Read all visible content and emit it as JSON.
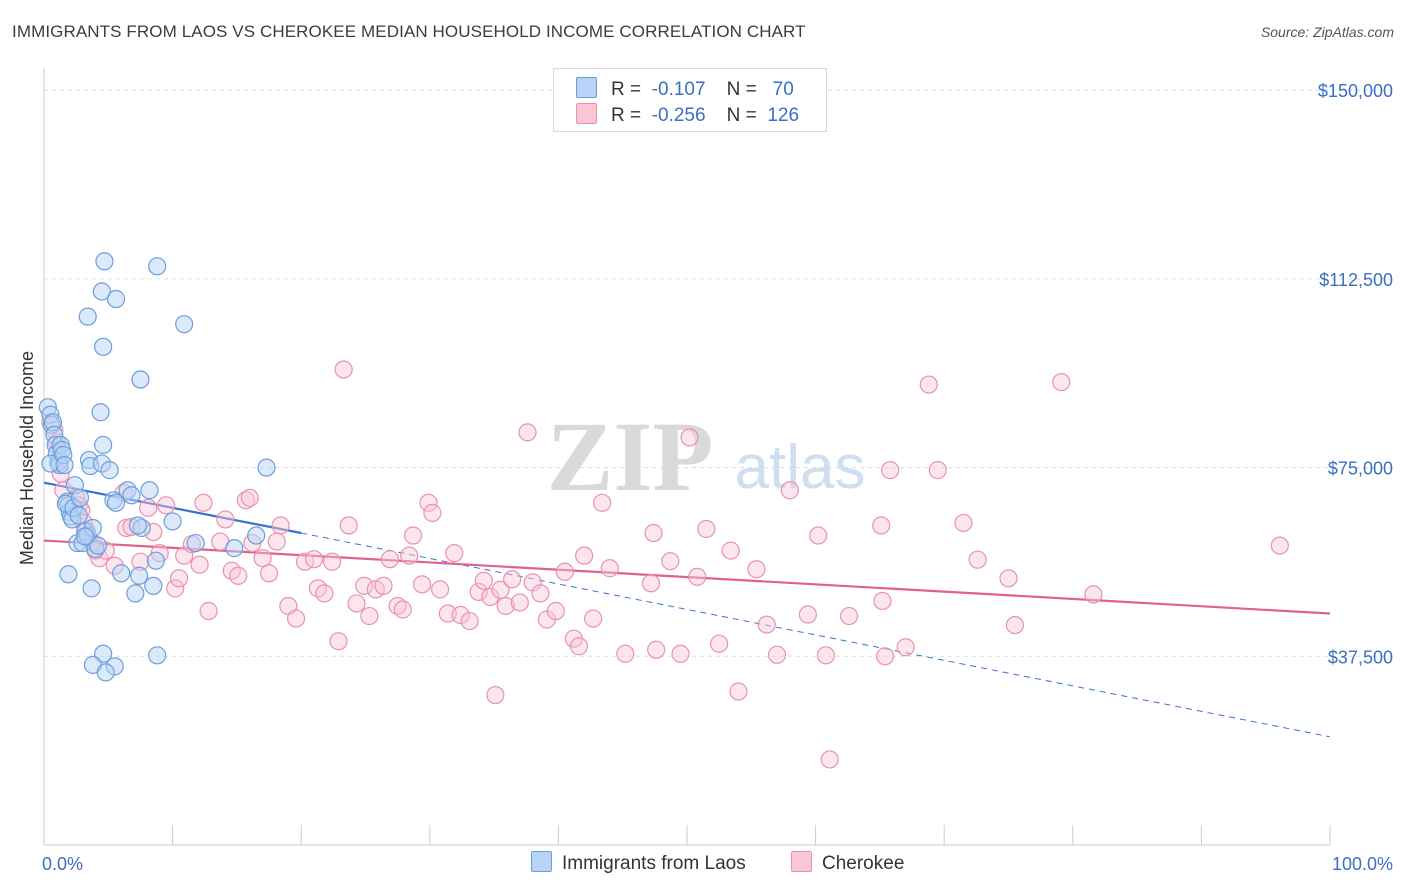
{
  "title": "IMMIGRANTS FROM LAOS VS CHEROKEE MEDIAN HOUSEHOLD INCOME CORRELATION CHART",
  "source": "Source: ZipAtlas.com",
  "watermark": {
    "zip": "ZIP",
    "atlas": "atlas"
  },
  "legend": {
    "rows": [
      {
        "r_label": "R =",
        "r_value": "-0.107",
        "n_label": "N =",
        "n_value": "70"
      },
      {
        "r_label": "R =",
        "r_value": "-0.256",
        "n_label": "N =",
        "n_value": "126"
      }
    ]
  },
  "colors": {
    "laos_fill": "#b8d3f5",
    "laos_stroke": "#6b9fdc",
    "laos_line": "#3a72d0",
    "cherokee_fill": "#f8c6d6",
    "cherokee_stroke": "#e892b0",
    "cherokee_line": "#e0608e",
    "axis_text": "#3a6fc4",
    "grid": "#dcdcdc"
  },
  "chart_data": {
    "type": "scatter",
    "title": "IMMIGRANTS FROM LAOS VS CHEROKEE MEDIAN HOUSEHOLD INCOME CORRELATION CHART",
    "xlabel": "",
    "ylabel": "Median Household Income",
    "xlim": [
      0,
      100
    ],
    "ylim": [
      0,
      156000
    ],
    "x_tick_labels": [
      "0.0%",
      "100.0%"
    ],
    "y_ticks": [
      37500,
      75000,
      112500,
      150000
    ],
    "y_tick_labels": [
      "$37,500",
      "$75,000",
      "$112,500",
      "$150,000"
    ],
    "grid": true,
    "series": [
      {
        "name": "Immigrants from Laos",
        "r": -0.107,
        "n": 70,
        "trend": {
          "x": [
            0,
            20
          ],
          "y": [
            72000,
            62000
          ],
          "dashed_extension": {
            "x": [
              20,
              100
            ],
            "y": [
              62000,
              21500
            ]
          }
        },
        "points": [
          [
            0.3,
            87000
          ],
          [
            0.5,
            85500
          ],
          [
            0.6,
            83500
          ],
          [
            0.7,
            84000
          ],
          [
            0.8,
            81500
          ],
          [
            0.9,
            79500
          ],
          [
            1.0,
            77800
          ],
          [
            1.1,
            76000
          ],
          [
            1.2,
            75500
          ],
          [
            0.5,
            75800
          ],
          [
            1.3,
            79500
          ],
          [
            1.4,
            78500
          ],
          [
            1.5,
            77500
          ],
          [
            1.6,
            75500
          ],
          [
            1.8,
            68200
          ],
          [
            1.9,
            67500
          ],
          [
            2.0,
            66200
          ],
          [
            2.1,
            65300
          ],
          [
            1.7,
            67800
          ],
          [
            2.2,
            64700
          ],
          [
            2.3,
            67000
          ],
          [
            2.4,
            71500
          ],
          [
            2.6,
            60000
          ],
          [
            2.7,
            65500
          ],
          [
            2.8,
            69000
          ],
          [
            3.0,
            60000
          ],
          [
            3.2,
            62300
          ],
          [
            3.4,
            61500
          ],
          [
            3.5,
            76500
          ],
          [
            3.6,
            75300
          ],
          [
            3.7,
            51000
          ],
          [
            3.8,
            63000
          ],
          [
            4.0,
            58800
          ],
          [
            4.2,
            59500
          ],
          [
            4.4,
            86000
          ],
          [
            4.5,
            75800
          ],
          [
            4.6,
            79500
          ],
          [
            4.7,
            116000
          ],
          [
            4.5,
            110000
          ],
          [
            3.4,
            105000
          ],
          [
            5.6,
            108500
          ],
          [
            4.6,
            99000
          ],
          [
            5.1,
            74500
          ],
          [
            5.4,
            68500
          ],
          [
            5.6,
            68000
          ],
          [
            6.0,
            54000
          ],
          [
            6.5,
            70500
          ],
          [
            6.8,
            69500
          ],
          [
            7.1,
            50000
          ],
          [
            7.4,
            53500
          ],
          [
            7.6,
            63000
          ],
          [
            7.3,
            63500
          ],
          [
            7.5,
            92500
          ],
          [
            8.2,
            70500
          ],
          [
            8.5,
            51500
          ],
          [
            8.7,
            56500
          ],
          [
            8.8,
            115000
          ],
          [
            10.0,
            64300
          ],
          [
            10.9,
            103500
          ],
          [
            11.8,
            60000
          ],
          [
            14.8,
            59000
          ],
          [
            16.5,
            61500
          ],
          [
            17.3,
            75000
          ],
          [
            4.6,
            38000
          ],
          [
            3.8,
            35800
          ],
          [
            5.5,
            35500
          ],
          [
            4.8,
            34300
          ],
          [
            8.8,
            37700
          ],
          [
            3.2,
            61300
          ],
          [
            1.9,
            53800
          ]
        ]
      },
      {
        "name": "Cherokee",
        "r": -0.256,
        "n": 126,
        "trend": {
          "x": [
            0,
            100
          ],
          "y": [
            60500,
            46000
          ]
        },
        "points": [
          [
            0.5,
            84000
          ],
          [
            0.8,
            82500
          ],
          [
            1.0,
            80000
          ],
          [
            1.2,
            76500
          ],
          [
            1.3,
            73800
          ],
          [
            1.5,
            70500
          ],
          [
            2.5,
            69000
          ],
          [
            2.7,
            67500
          ],
          [
            2.9,
            66500
          ],
          [
            3.1,
            64000
          ],
          [
            3.3,
            62500
          ],
          [
            3.5,
            61000
          ],
          [
            3.8,
            60000
          ],
          [
            4.0,
            58500
          ],
          [
            4.3,
            57000
          ],
          [
            4.8,
            58500
          ],
          [
            5.5,
            55500
          ],
          [
            6.2,
            70000
          ],
          [
            6.4,
            63000
          ],
          [
            6.8,
            63200
          ],
          [
            7.5,
            56300
          ],
          [
            8.1,
            67000
          ],
          [
            8.5,
            62200
          ],
          [
            9.0,
            58000
          ],
          [
            9.5,
            67500
          ],
          [
            10.2,
            51000
          ],
          [
            10.5,
            53000
          ],
          [
            10.9,
            57500
          ],
          [
            11.5,
            59800
          ],
          [
            12.1,
            55700
          ],
          [
            12.4,
            68000
          ],
          [
            12.8,
            46500
          ],
          [
            13.7,
            60300
          ],
          [
            14.1,
            64700
          ],
          [
            14.6,
            54500
          ],
          [
            15.1,
            53500
          ],
          [
            15.7,
            68500
          ],
          [
            16.0,
            69000
          ],
          [
            16.2,
            60000
          ],
          [
            17.0,
            57000
          ],
          [
            17.5,
            54000
          ],
          [
            18.1,
            60300
          ],
          [
            18.4,
            63500
          ],
          [
            19.0,
            47500
          ],
          [
            19.6,
            45000
          ],
          [
            20.3,
            56300
          ],
          [
            21.0,
            56800
          ],
          [
            21.3,
            51000
          ],
          [
            21.8,
            50000
          ],
          [
            22.4,
            56300
          ],
          [
            22.9,
            40500
          ],
          [
            23.3,
            94500
          ],
          [
            23.7,
            63500
          ],
          [
            24.3,
            48000
          ],
          [
            24.9,
            51500
          ],
          [
            25.3,
            45500
          ],
          [
            25.8,
            50800
          ],
          [
            26.4,
            51500
          ],
          [
            26.9,
            56800
          ],
          [
            27.5,
            47500
          ],
          [
            27.9,
            46800
          ],
          [
            28.4,
            57500
          ],
          [
            28.7,
            61500
          ],
          [
            29.4,
            51800
          ],
          [
            29.9,
            68000
          ],
          [
            30.2,
            66000
          ],
          [
            30.8,
            50800
          ],
          [
            31.4,
            46000
          ],
          [
            31.9,
            58000
          ],
          [
            32.4,
            45700
          ],
          [
            33.1,
            44500
          ],
          [
            33.8,
            50300
          ],
          [
            34.2,
            52500
          ],
          [
            34.7,
            49300
          ],
          [
            35.1,
            29800
          ],
          [
            35.5,
            50700
          ],
          [
            35.9,
            47500
          ],
          [
            36.4,
            52800
          ],
          [
            37.0,
            48200
          ],
          [
            37.6,
            82000
          ],
          [
            38.0,
            52200
          ],
          [
            38.6,
            50000
          ],
          [
            39.1,
            44800
          ],
          [
            39.8,
            46500
          ],
          [
            40.5,
            54300
          ],
          [
            41.2,
            41000
          ],
          [
            41.6,
            39500
          ],
          [
            42.0,
            57500
          ],
          [
            42.7,
            45000
          ],
          [
            43.4,
            68000
          ],
          [
            44.0,
            55000
          ],
          [
            45.2,
            38000
          ],
          [
            47.2,
            52000
          ],
          [
            47.6,
            38800
          ],
          [
            47.4,
            62000
          ],
          [
            48.7,
            56400
          ],
          [
            49.5,
            38000
          ],
          [
            50.2,
            81000
          ],
          [
            50.8,
            53300
          ],
          [
            51.5,
            62800
          ],
          [
            52.5,
            40000
          ],
          [
            53.4,
            58500
          ],
          [
            54.0,
            30500
          ],
          [
            55.4,
            54800
          ],
          [
            56.2,
            43800
          ],
          [
            57.0,
            37800
          ],
          [
            58.0,
            70500
          ],
          [
            59.4,
            45800
          ],
          [
            60.2,
            61500
          ],
          [
            60.8,
            37700
          ],
          [
            61.1,
            17000
          ],
          [
            62.6,
            45500
          ],
          [
            65.1,
            63500
          ],
          [
            65.8,
            74500
          ],
          [
            65.2,
            48500
          ],
          [
            65.4,
            37500
          ],
          [
            67.0,
            39300
          ],
          [
            68.8,
            91500
          ],
          [
            69.5,
            74500
          ],
          [
            71.5,
            64000
          ],
          [
            72.6,
            56700
          ],
          [
            75.5,
            43700
          ],
          [
            79.1,
            92000
          ],
          [
            75.0,
            53000
          ],
          [
            81.6,
            49800
          ],
          [
            96.1,
            59500
          ]
        ]
      }
    ]
  },
  "bottom_legend": [
    "Immigrants from Laos",
    "Cherokee"
  ]
}
